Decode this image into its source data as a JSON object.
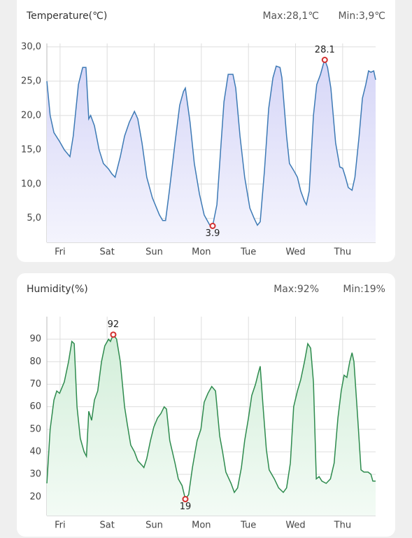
{
  "chart_data": [
    {
      "type": "line",
      "title": "Temperature(℃)",
      "max_text": "Max:28,1℃",
      "min_text": "Min:3,9℃",
      "color": "#3d7ab5",
      "fill": "#dcdcf7",
      "grid": true,
      "xlim": [
        -0.28,
        6.7
      ],
      "xticks": [
        {
          "value": 0,
          "label": "Fri"
        },
        {
          "value": 1,
          "label": "Sat"
        },
        {
          "value": 2,
          "label": "Sun"
        },
        {
          "value": 3,
          "label": "Mon"
        },
        {
          "value": 4,
          "label": "Tue"
        },
        {
          "value": 5,
          "label": "Wed"
        },
        {
          "value": 6,
          "label": "Thu"
        }
      ],
      "ylim": [
        1.5,
        30.5
      ],
      "yticks": [
        {
          "value": 5,
          "label": "5,0"
        },
        {
          "value": 10,
          "label": "10,0"
        },
        {
          "value": 15,
          "label": "15,0"
        },
        {
          "value": 20,
          "label": "20,0"
        },
        {
          "value": 25,
          "label": "25,0"
        },
        {
          "value": 30,
          "label": "30,0"
        }
      ],
      "x": [
        -0.28,
        -0.21,
        -0.13,
        -0.01,
        0.09,
        0.21,
        0.28,
        0.39,
        0.48,
        0.55,
        0.61,
        0.65,
        0.73,
        0.83,
        0.92,
        1.03,
        1.1,
        1.17,
        1.28,
        1.37,
        1.47,
        1.58,
        1.65,
        1.74,
        1.84,
        1.96,
        2.11,
        2.18,
        2.24,
        2.32,
        2.44,
        2.54,
        2.62,
        2.66,
        2.76,
        2.85,
        2.96,
        3.06,
        3.18,
        3.24,
        3.33,
        3.42,
        3.48,
        3.57,
        3.67,
        3.73,
        3.82,
        3.92,
        4.03,
        4.12,
        4.19,
        4.25,
        4.34,
        4.43,
        4.52,
        4.59,
        4.67,
        4.71,
        4.81,
        4.87,
        4.96,
        5.04,
        5.11,
        5.19,
        5.23,
        5.29,
        5.38,
        5.45,
        5.53,
        5.59,
        5.62,
        5.68,
        5.75,
        5.85,
        5.94,
        6.0,
        6.06,
        6.12,
        6.2,
        6.26,
        6.35,
        6.42,
        6.49,
        6.55,
        6.6,
        6.66,
        6.7
      ],
      "values": [
        25.0,
        20,
        17.5,
        16.2,
        15,
        14,
        17,
        24.5,
        27,
        27,
        19.5,
        20,
        18.5,
        15,
        13,
        12.2,
        11.5,
        11,
        14,
        17,
        19,
        20.6,
        19.5,
        16,
        11,
        8,
        5.5,
        4.7,
        4.7,
        9,
        16,
        21.5,
        23.5,
        24,
        19,
        13,
        8.5,
        5.5,
        4,
        3.9,
        7,
        16,
        22,
        26,
        26,
        24,
        17,
        11,
        6.5,
        5,
        4,
        4.5,
        12,
        21,
        25.5,
        27.2,
        27,
        25.5,
        17,
        13,
        12,
        11,
        9,
        7.5,
        7,
        9,
        20,
        24.5,
        26,
        27.5,
        28.1,
        27,
        24,
        16,
        12.5,
        12.3,
        11,
        9.5,
        9.1,
        11,
        17,
        22.5,
        24.5,
        26.5,
        26.3,
        26.5,
        25.2
      ],
      "annotations": [
        {
          "x": 5.62,
          "y": 28.1
        },
        {
          "x": 3.24,
          "y": 3.9
        }
      ]
    },
    {
      "type": "line",
      "title": "Humidity(%)",
      "max_text": "Max:92%",
      "min_text": "Min:19%",
      "color": "#2e8b4e",
      "fill": "#d8f0de",
      "grid": true,
      "xlim": [
        -0.28,
        6.7
      ],
      "xticks": [
        {
          "value": 0,
          "label": "Fri"
        },
        {
          "value": 1,
          "label": "Sat"
        },
        {
          "value": 2,
          "label": "Sun"
        },
        {
          "value": 3,
          "label": "Mon"
        },
        {
          "value": 4,
          "label": "Tue"
        },
        {
          "value": 5,
          "label": "Wed"
        },
        {
          "value": 6,
          "label": "Thu"
        }
      ],
      "ylim": [
        11.7,
        100
      ],
      "yticks": [
        20,
        30,
        40,
        50,
        60,
        70,
        80,
        90
      ],
      "x": [
        -0.28,
        -0.21,
        -0.13,
        -0.07,
        -0.01,
        0.09,
        0.18,
        0.25,
        0.3,
        0.36,
        0.43,
        0.51,
        0.56,
        0.61,
        0.67,
        0.73,
        0.8,
        0.88,
        0.95,
        1.03,
        1.07,
        1.13,
        1.2,
        1.28,
        1.37,
        1.43,
        1.5,
        1.58,
        1.65,
        1.74,
        1.78,
        1.84,
        1.92,
        1.99,
        2.07,
        2.14,
        2.21,
        2.26,
        2.33,
        2.44,
        2.51,
        2.59,
        2.66,
        2.73,
        2.81,
        2.91,
        2.99,
        3.06,
        3.14,
        3.22,
        3.3,
        3.39,
        3.45,
        3.52,
        3.63,
        3.7,
        3.77,
        3.85,
        3.92,
        4.0,
        4.07,
        4.15,
        4.21,
        4.25,
        4.31,
        4.38,
        4.44,
        4.55,
        4.64,
        4.74,
        4.81,
        4.89,
        4.96,
        5.04,
        5.11,
        5.19,
        5.26,
        5.32,
        5.38,
        5.44,
        5.5,
        5.56,
        5.65,
        5.74,
        5.82,
        5.9,
        5.97,
        6.03,
        6.09,
        6.15,
        6.2,
        6.24,
        6.32,
        6.39,
        6.45,
        6.54,
        6.6,
        6.64,
        6.7
      ],
      "values": [
        26,
        50,
        63,
        67,
        66,
        71,
        80,
        89,
        88,
        60,
        46,
        40,
        38,
        58,
        54,
        63,
        67,
        80,
        87,
        90,
        89,
        92,
        90,
        80,
        60,
        52,
        43,
        40,
        36,
        34,
        33,
        37,
        45,
        51,
        55,
        57,
        60,
        59,
        45,
        35,
        28,
        25,
        19,
        21,
        33,
        45,
        50,
        62,
        66,
        69,
        67,
        47,
        40,
        31,
        26,
        22,
        24,
        33,
        45,
        55,
        65,
        70,
        75,
        78,
        60,
        41,
        32,
        28,
        24,
        22,
        24,
        35,
        60,
        67,
        72,
        80,
        88,
        86,
        71,
        28,
        29,
        27,
        26,
        28,
        35,
        55,
        67,
        74,
        73,
        80,
        84,
        80,
        55,
        32,
        31,
        31,
        30,
        27,
        27
      ],
      "annotations": [
        {
          "x": 1.13,
          "y": 92
        },
        {
          "x": 2.66,
          "y": 19
        }
      ]
    }
  ]
}
